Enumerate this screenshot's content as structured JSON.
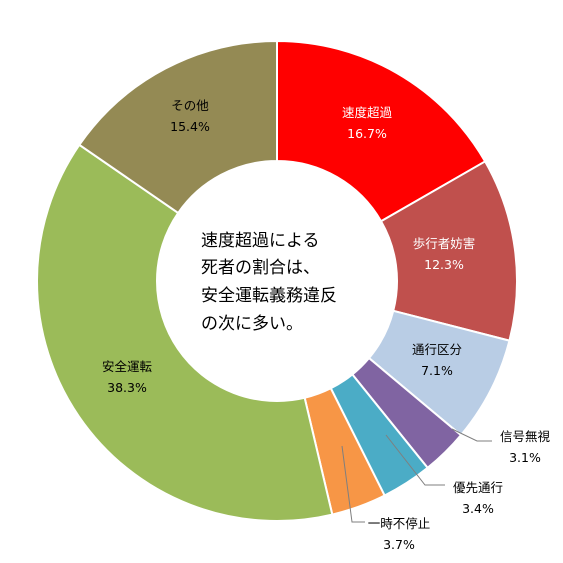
{
  "chart_data": {
    "type": "pie",
    "donut": true,
    "title": "",
    "categories": [
      "速度超過",
      "歩行者妨害",
      "通行区分",
      "信号無視",
      "優先通行",
      "一時不停止",
      "安全運転",
      "その他"
    ],
    "values": [
      16.7,
      12.3,
      7.1,
      3.1,
      3.4,
      3.7,
      38.3,
      15.4
    ],
    "value_labels": [
      "16.7%",
      "12.3%",
      "7.1%",
      "3.1%",
      "3.4%",
      "3.7%",
      "38.3%",
      "15.4%"
    ],
    "colors": [
      "#ff0000",
      "#c0504d",
      "#b9cde5",
      "#8064a2",
      "#4bacc6",
      "#f79646",
      "#9bbb59",
      "#948a54"
    ],
    "label_colors": [
      "#ffffff",
      "#ffffff",
      "#000000",
      "#000000",
      "#000000",
      "#000000",
      "#000000",
      "#000000"
    ],
    "legend": "none",
    "annotation": [
      "速度超過による",
      "死者の割合は、",
      "安全運転義務違反",
      "の次に多い。"
    ]
  }
}
